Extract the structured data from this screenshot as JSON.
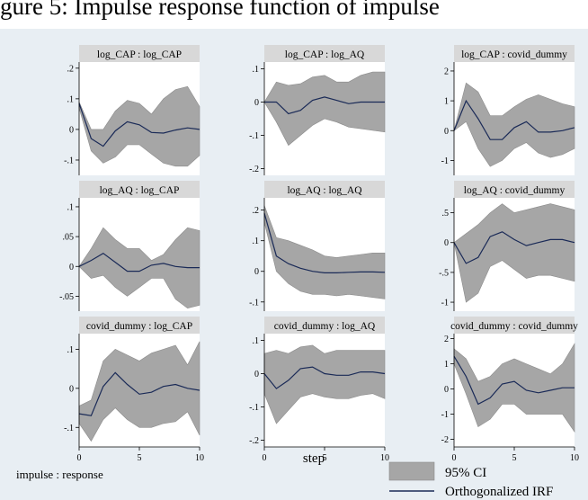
{
  "caption_fragment": "gure 5: Impulse response function of impulse",
  "chart_data": {
    "type": "line",
    "panels": [
      {
        "title": "log_CAP : log_CAP",
        "yticks": [
          ".2",
          ".1",
          "0",
          "-.1"
        ],
        "ytick_values": [
          0.2,
          0.1,
          0,
          -0.1
        ],
        "ylim": [
          -0.15,
          0.22
        ],
        "irf": [
          0.085,
          -0.03,
          -0.055,
          -0.005,
          0.025,
          0.015,
          -0.01,
          -0.012,
          -0.002,
          0.005,
          0.0
        ],
        "upper": [
          0.09,
          0.0,
          0.0,
          0.06,
          0.095,
          0.085,
          0.05,
          0.1,
          0.13,
          0.14,
          0.075
        ],
        "lower": [
          0.07,
          -0.07,
          -0.11,
          -0.09,
          -0.05,
          -0.05,
          -0.08,
          -0.11,
          -0.12,
          -0.12,
          -0.085
        ]
      },
      {
        "title": "log_CAP : log_AQ",
        "yticks": [
          ".1",
          "0",
          "-.1",
          "-.2"
        ],
        "ytick_values": [
          0.1,
          0,
          -0.1,
          -0.2
        ],
        "ylim": [
          -0.22,
          0.12
        ],
        "irf": [
          0.0,
          0.0,
          -0.035,
          -0.025,
          0.005,
          0.015,
          0.005,
          -0.005,
          0.0,
          0.0,
          0.0
        ],
        "upper": [
          0.0,
          0.06,
          0.05,
          0.055,
          0.075,
          0.08,
          0.06,
          0.06,
          0.08,
          0.09,
          0.09
        ],
        "lower": [
          0.0,
          -0.06,
          -0.13,
          -0.1,
          -0.07,
          -0.05,
          -0.06,
          -0.075,
          -0.08,
          -0.085,
          -0.09
        ]
      },
      {
        "title": "log_CAP : covid_dummy",
        "yticks": [
          "2",
          "1",
          "0",
          "-1"
        ],
        "ytick_values": [
          2,
          1,
          0,
          -1
        ],
        "ylim": [
          -1.5,
          2.3
        ],
        "irf": [
          0.0,
          1.0,
          0.4,
          -0.3,
          -0.3,
          0.1,
          0.3,
          -0.05,
          -0.05,
          0.0,
          0.1
        ],
        "upper": [
          0.0,
          1.6,
          1.3,
          0.5,
          0.5,
          0.8,
          1.05,
          1.2,
          1.05,
          0.9,
          0.8
        ],
        "lower": [
          0.0,
          0.3,
          -0.6,
          -1.2,
          -1.0,
          -0.6,
          -0.4,
          -0.75,
          -0.9,
          -0.8,
          -0.6
        ]
      },
      {
        "title": "log_AQ : log_CAP",
        "yticks": [
          ".1",
          ".05",
          "0",
          "-.05"
        ],
        "ytick_values": [
          0.1,
          0.05,
          0,
          -0.05
        ],
        "ylim": [
          -0.075,
          0.115
        ],
        "irf": [
          0.0,
          0.01,
          0.022,
          0.007,
          -0.008,
          -0.008,
          0.002,
          0.005,
          0.0,
          -0.002,
          -0.002
        ],
        "upper": [
          0.0,
          0.03,
          0.065,
          0.045,
          0.03,
          0.03,
          0.01,
          0.02,
          0.045,
          0.065,
          0.06
        ],
        "lower": [
          0.0,
          -0.02,
          -0.015,
          -0.035,
          -0.05,
          -0.035,
          -0.02,
          -0.02,
          -0.055,
          -0.07,
          -0.065
        ]
      },
      {
        "title": "log_AQ : log_AQ",
        "yticks": [
          ".2",
          ".1",
          "0",
          "-.1"
        ],
        "ytick_values": [
          0.2,
          0.1,
          0,
          -0.1
        ],
        "ylim": [
          -0.13,
          0.24
        ],
        "irf": [
          0.19,
          0.05,
          0.025,
          0.01,
          0.0,
          -0.005,
          -0.005,
          -0.003,
          -0.002,
          -0.002,
          -0.003
        ],
        "upper": [
          0.215,
          0.11,
          0.1,
          0.085,
          0.07,
          0.05,
          0.045,
          0.05,
          0.055,
          0.06,
          0.06
        ],
        "lower": [
          0.16,
          0.0,
          -0.04,
          -0.065,
          -0.075,
          -0.075,
          -0.08,
          -0.075,
          -0.08,
          -0.085,
          -0.09
        ]
      },
      {
        "title": "log_AQ : covid_dummy",
        "yticks": [
          ".5",
          "0",
          "-.5",
          "-1"
        ],
        "ytick_values": [
          0.5,
          0,
          -0.5,
          -1
        ],
        "ylim": [
          -1.15,
          0.75
        ],
        "irf": [
          0.0,
          -0.35,
          -0.25,
          0.1,
          0.18,
          0.05,
          -0.05,
          0.0,
          0.05,
          0.05,
          0.0
        ],
        "upper": [
          0.0,
          0.15,
          0.3,
          0.5,
          0.65,
          0.5,
          0.55,
          0.6,
          0.65,
          0.6,
          0.55
        ],
        "lower": [
          0.0,
          -1.0,
          -0.85,
          -0.4,
          -0.3,
          -0.45,
          -0.6,
          -0.55,
          -0.55,
          -0.6,
          -0.65
        ]
      },
      {
        "title": "covid_dummy : log_CAP",
        "yticks": [
          ".1",
          "0",
          "-.1"
        ],
        "ytick_values": [
          0.1,
          0,
          -0.1
        ],
        "ylim": [
          -0.15,
          0.14
        ],
        "irf": [
          -0.065,
          -0.07,
          0.005,
          0.04,
          0.01,
          -0.015,
          -0.01,
          0.005,
          0.01,
          0.0,
          -0.005
        ],
        "upper": [
          -0.045,
          -0.03,
          0.07,
          0.1,
          0.085,
          0.07,
          0.09,
          0.1,
          0.11,
          0.06,
          0.12
        ],
        "lower": [
          -0.09,
          -0.135,
          -0.08,
          -0.05,
          -0.08,
          -0.1,
          -0.1,
          -0.09,
          -0.085,
          -0.06,
          -0.12
        ]
      },
      {
        "title": "covid_dummy : log_AQ",
        "yticks": [
          ".1",
          "0",
          "-.1",
          "-.2"
        ],
        "ytick_values": [
          0.1,
          0,
          -0.1,
          -0.2
        ],
        "ylim": [
          -0.22,
          0.12
        ],
        "irf": [
          0.0,
          -0.045,
          -0.02,
          0.015,
          0.02,
          0.0,
          -0.005,
          -0.005,
          0.005,
          0.005,
          0.0
        ],
        "upper": [
          0.06,
          0.07,
          0.06,
          0.08,
          0.085,
          0.06,
          0.07,
          0.07,
          0.07,
          0.07,
          0.07
        ],
        "lower": [
          -0.06,
          -0.15,
          -0.11,
          -0.07,
          -0.06,
          -0.07,
          -0.075,
          -0.075,
          -0.065,
          -0.06,
          -0.075
        ]
      },
      {
        "title": "covid_dummy : covid_dummy",
        "yticks": [
          "2",
          "1",
          "0",
          "-1",
          "-2"
        ],
        "ytick_values": [
          2,
          1,
          0,
          -1,
          -2
        ],
        "ylim": [
          -2.3,
          2.2
        ],
        "irf": [
          1.3,
          0.5,
          -0.6,
          -0.35,
          0.2,
          0.3,
          -0.05,
          -0.15,
          -0.05,
          0.05,
          0.05
        ],
        "upper": [
          1.6,
          1.2,
          0.3,
          0.5,
          1.0,
          1.2,
          1.0,
          0.8,
          0.6,
          1.0,
          1.8
        ],
        "lower": [
          1.0,
          -0.2,
          -1.5,
          -1.2,
          -0.6,
          -0.6,
          -1.0,
          -1.0,
          -1.0,
          -1.0,
          -1.7
        ]
      }
    ],
    "xticks": [
      "0",
      "5",
      "10"
    ],
    "xtick_values": [
      0,
      5,
      10
    ],
    "xlim": [
      0,
      10
    ],
    "xlabel": "step",
    "layout_note": "impulse : response",
    "legend": {
      "ci_label": "95% CI",
      "irf_label": "Orthogonalized IRF"
    },
    "colors": {
      "plot_bg": "#e8eef3",
      "panel_bg": "#ffffff",
      "ci_fill": "#a6a6a6",
      "ci_stroke": "#8c8c8c",
      "irf_line": "#1a2a57",
      "title_bg": "#d8d8d8"
    }
  }
}
